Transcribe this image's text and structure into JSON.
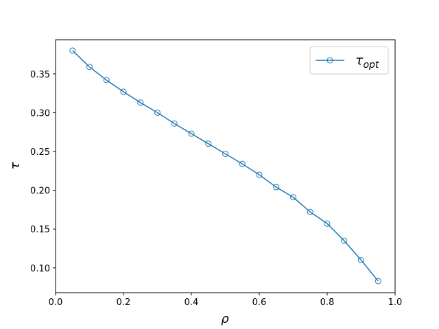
{
  "chart_data": {
    "type": "line",
    "x_label": "ρ",
    "y_label": "τ",
    "x": [
      0.05,
      0.1,
      0.15,
      0.2,
      0.25,
      0.3,
      0.35,
      0.4,
      0.45,
      0.5,
      0.55,
      0.6,
      0.65,
      0.7,
      0.75,
      0.8,
      0.85,
      0.9,
      0.95
    ],
    "series": [
      {
        "name": "τopt",
        "color": "#1f77b4",
        "values": [
          0.38,
          0.359,
          0.342,
          0.327,
          0.313,
          0.3,
          0.286,
          0.273,
          0.26,
          0.247,
          0.234,
          0.22,
          0.204,
          0.191,
          0.172,
          0.157,
          0.135,
          0.11,
          0.083
        ]
      }
    ],
    "xlim": [
      0,
      1
    ],
    "ylim": [
      0.068,
      0.394
    ],
    "xticks": [
      {
        "value": 0,
        "label": "0.0"
      },
      0.2,
      0.4,
      0.6,
      0.8,
      {
        "value": 1,
        "label": "1.0"
      }
    ],
    "yticks": [
      {
        "value": 0.1,
        "label": "0.10"
      },
      0.15,
      {
        "value": 0.2,
        "label": "0.20"
      },
      0.25,
      {
        "value": 0.3,
        "label": "0.30"
      },
      0.35
    ],
    "legend": "upper right",
    "grid": false
  }
}
